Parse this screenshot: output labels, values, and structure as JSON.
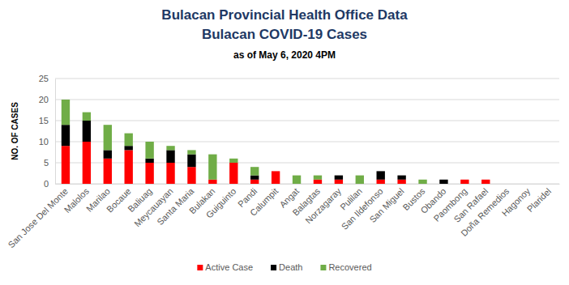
{
  "chart_data": {
    "type": "bar",
    "title": [
      "Bulacan Provincial Health Office Data",
      "Bulacan COVID-19 Cases"
    ],
    "subtitle": "as of May 6, 2020 4PM",
    "ylabel": "NO. OF CASES",
    "stacked": true,
    "grid": true,
    "legend": "bottom",
    "categories": [
      "San Jose Del Monte",
      "Malolos",
      "Marilao",
      "Bocaue",
      "Baliuag",
      "Meycauayan",
      "Santa Maria",
      "Bulakan",
      "Guiguinto",
      "Pandi",
      "Calumpit",
      "Angat",
      "Balagtas",
      "Norzagaray",
      "Pulilan",
      "San Ildefonso",
      "San Miguel",
      "Bustos",
      "Obando",
      "Paombong",
      "San Rafael",
      "Doña Remedios",
      "Hagonoy",
      "Plaridel"
    ],
    "series": [
      {
        "name": "Active Case",
        "color": "#ff0000",
        "values": [
          9,
          10,
          6,
          8,
          5,
          5,
          4,
          1,
          5,
          1,
          3,
          0,
          1,
          1,
          0,
          1,
          1,
          0,
          0,
          1,
          1,
          0,
          0,
          0
        ]
      },
      {
        "name": "Death",
        "color": "#000000",
        "values": [
          5,
          5,
          2,
          1,
          1,
          3,
          3,
          0,
          0,
          1,
          0,
          0,
          0,
          1,
          0,
          2,
          1,
          0,
          1,
          0,
          0,
          0,
          0,
          0
        ]
      },
      {
        "name": "Recovered",
        "color": "#70ad47",
        "values": [
          6,
          2,
          6,
          3,
          4,
          1,
          1,
          6,
          1,
          2,
          0,
          2,
          1,
          0,
          2,
          0,
          0,
          1,
          0,
          0,
          0,
          0,
          0,
          0
        ]
      }
    ],
    "ylim": [
      0,
      25
    ],
    "yticks": [
      0,
      5,
      10,
      15,
      20,
      25
    ]
  }
}
